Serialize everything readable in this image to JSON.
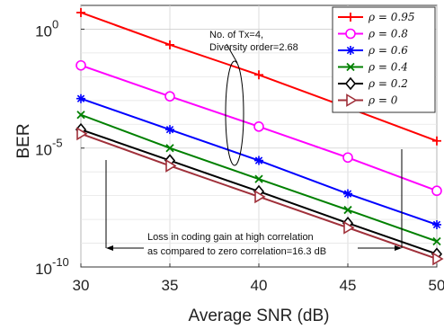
{
  "chart_data": {
    "type": "line",
    "xlabel": "Average SNR (dB)",
    "ylabel": "BER",
    "x": [
      30,
      35,
      40,
      45,
      50
    ],
    "xlim": [
      30,
      50
    ],
    "ylim": [
      1e-10,
      10.0
    ],
    "yscale": "log",
    "xticks": [
      "30",
      "35",
      "40",
      "45",
      "50"
    ],
    "yticks": [
      {
        "base": "10",
        "exp": "0",
        "value": 1
      },
      {
        "base": "10",
        "exp": "-5",
        "value": 1e-05
      },
      {
        "base": "10",
        "exp": "-10",
        "value": 1e-10
      }
    ],
    "grid": true,
    "legend_position": "top-right",
    "series": [
      {
        "name": "ρ = 0.95",
        "color": "#ff0000",
        "marker": "plus",
        "values": [
          5.0,
          0.22,
          0.012,
          0.0005,
          2e-05
        ]
      },
      {
        "name": "ρ = 0.8",
        "color": "#ff00ff",
        "marker": "circle",
        "values": [
          0.03,
          0.0015,
          8e-05,
          4e-06,
          1.6e-07
        ]
      },
      {
        "name": "ρ = 0.6",
        "color": "#0000ff",
        "marker": "asterisk",
        "values": [
          0.0012,
          6e-05,
          3e-06,
          1.2e-07,
          6e-09
        ]
      },
      {
        "name": "ρ = 0.4",
        "color": "#008000",
        "marker": "x",
        "values": [
          0.00025,
          1e-05,
          5e-07,
          2.5e-08,
          1.2e-09
        ]
      },
      {
        "name": "ρ = 0.2",
        "color": "#000000",
        "marker": "diamond",
        "values": [
          6e-05,
          3e-06,
          1.5e-07,
          7e-09,
          3.5e-10
        ]
      },
      {
        "name": "ρ = 0",
        "color": "#a0303a",
        "marker": "triangle-right",
        "values": [
          4e-05,
          1.8e-06,
          9e-08,
          4.5e-09,
          2.2e-10
        ]
      }
    ],
    "annotations": {
      "diversity": [
        "No. of Tx=4,",
        "Diversity order=2.68"
      ],
      "coding_gain": [
        "Loss in coding gain at high correlation",
        "as compared to zero correlation=16.3 dB"
      ]
    }
  }
}
